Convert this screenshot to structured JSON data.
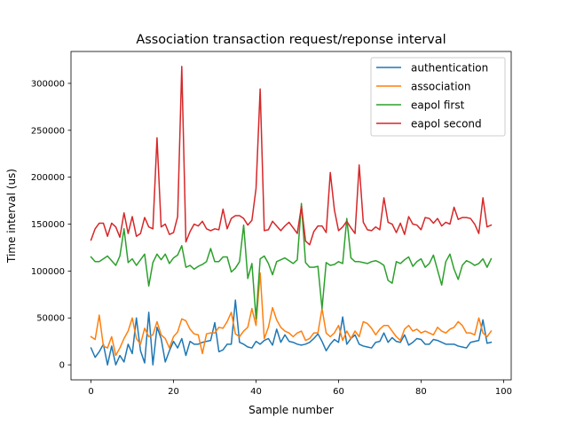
{
  "chart_data": {
    "type": "line",
    "title": "Association transaction request/reponse interval",
    "xlabel": "Sample number",
    "ylabel": "Time interval (us)",
    "xlim": [
      -4.85,
      101.85
    ],
    "ylim": [
      -16000,
      334000
    ],
    "xticks": [
      0,
      20,
      40,
      60,
      80,
      100
    ],
    "xtick_labels": [
      "0",
      "20",
      "40",
      "60",
      "80",
      "100"
    ],
    "yticks": [
      0,
      50000,
      100000,
      150000,
      200000,
      250000,
      300000
    ],
    "ytick_labels": [
      "0",
      "50000",
      "100000",
      "150000",
      "200000",
      "250000",
      "300000"
    ],
    "grid": false,
    "legend_position": "top-right",
    "x": [
      0,
      1,
      2,
      3,
      4,
      5,
      6,
      7,
      8,
      9,
      10,
      11,
      12,
      13,
      14,
      15,
      16,
      17,
      18,
      19,
      20,
      21,
      22,
      23,
      24,
      25,
      26,
      27,
      28,
      29,
      30,
      31,
      32,
      33,
      34,
      35,
      36,
      37,
      38,
      39,
      40,
      41,
      42,
      43,
      44,
      45,
      46,
      47,
      48,
      49,
      50,
      51,
      52,
      53,
      54,
      55,
      56,
      57,
      58,
      59,
      60,
      61,
      62,
      63,
      64,
      65,
      66,
      67,
      68,
      69,
      70,
      71,
      72,
      73,
      74,
      75,
      76,
      77,
      78,
      79,
      80,
      81,
      82,
      83,
      84,
      85,
      86,
      87,
      88,
      89,
      90,
      91,
      92,
      93,
      94,
      95,
      96,
      97
    ],
    "series": [
      {
        "name": "authentication",
        "color": "#1f77b4",
        "values": [
          18000,
          8000,
          14000,
          22000,
          0,
          20000,
          0,
          10000,
          3000,
          22000,
          12000,
          50000,
          15000,
          2000,
          56000,
          0,
          40000,
          28000,
          3000,
          15000,
          25000,
          18000,
          28000,
          10000,
          25000,
          22000,
          22000,
          24000,
          25000,
          26000,
          45000,
          14000,
          16000,
          22000,
          22000,
          69000,
          24000,
          22000,
          19000,
          18000,
          25000,
          22000,
          26000,
          28000,
          21000,
          38000,
          24000,
          32000,
          25000,
          24000,
          22000,
          21000,
          22000,
          24000,
          28000,
          33000,
          25000,
          15000,
          22000,
          27000,
          24000,
          51000,
          22000,
          28000,
          32000,
          22000,
          20000,
          19000,
          18000,
          24000,
          25000,
          34000,
          24000,
          29000,
          25000,
          24000,
          32000,
          21000,
          24000,
          28000,
          27000,
          22000,
          22000,
          27000,
          26000,
          24000,
          22000,
          22000,
          22000,
          20000,
          19000,
          18000,
          24000,
          25000,
          26000,
          48000,
          23000,
          24000
        ]
      },
      {
        "name": "association",
        "color": "#ff7f0e",
        "values": [
          30000,
          27000,
          53000,
          20000,
          18000,
          30000,
          10000,
          18000,
          28000,
          36000,
          50000,
          28000,
          22000,
          39000,
          30000,
          32000,
          46000,
          32000,
          28000,
          18000,
          30000,
          35000,
          49000,
          47000,
          38000,
          33000,
          32000,
          12000,
          33000,
          34000,
          34000,
          40000,
          39000,
          46000,
          56000,
          33000,
          30000,
          36000,
          40000,
          60000,
          42000,
          98000,
          28000,
          40000,
          61000,
          48000,
          40000,
          36000,
          34000,
          30000,
          34000,
          36000,
          26000,
          28000,
          34000,
          34000,
          60000,
          34000,
          30000,
          34000,
          42000,
          26000,
          36000,
          28000,
          36000,
          30000,
          46000,
          44000,
          39000,
          32000,
          38000,
          42000,
          42000,
          36000,
          30000,
          26000,
          38000,
          42000,
          36000,
          38000,
          34000,
          36000,
          34000,
          32000,
          40000,
          36000,
          34000,
          38000,
          40000,
          46000,
          42000,
          34000,
          34000,
          32000,
          50000,
          34000,
          30000,
          36000
        ]
      },
      {
        "name": "eapol first",
        "color": "#2ca02c",
        "values": [
          115000,
          110000,
          110000,
          113000,
          116000,
          111000,
          106000,
          116000,
          145000,
          109000,
          113000,
          106000,
          112000,
          118000,
          84000,
          109000,
          118000,
          112000,
          118000,
          108000,
          114000,
          117000,
          127000,
          104000,
          106000,
          102000,
          105000,
          107000,
          110000,
          124000,
          110000,
          110000,
          115000,
          115000,
          99000,
          103000,
          110000,
          149000,
          92000,
          108000,
          49000,
          113000,
          116000,
          108000,
          96000,
          110000,
          112000,
          114000,
          111000,
          108000,
          112000,
          172000,
          109000,
          104000,
          104000,
          105000,
          60000,
          109000,
          106000,
          107000,
          110000,
          108000,
          156000,
          114000,
          110000,
          110000,
          109000,
          108000,
          110000,
          111000,
          109000,
          106000,
          90000,
          87000,
          110000,
          108000,
          112000,
          115000,
          105000,
          110000,
          113000,
          104000,
          108000,
          117000,
          101000,
          85000,
          110000,
          118000,
          102000,
          91000,
          106000,
          111000,
          109000,
          106000,
          108000,
          113000,
          104000,
          113000
        ]
      },
      {
        "name": "eapol second",
        "color": "#d62728",
        "values": [
          133000,
          145000,
          151000,
          151000,
          137000,
          151000,
          147000,
          136000,
          162000,
          140000,
          158000,
          137000,
          140000,
          157000,
          147000,
          145000,
          242000,
          147000,
          150000,
          139000,
          141000,
          158000,
          318000,
          131000,
          142000,
          150000,
          148000,
          153000,
          145000,
          143000,
          145000,
          144000,
          166000,
          145000,
          156000,
          159000,
          159000,
          156000,
          149000,
          154000,
          188000,
          294000,
          143000,
          144000,
          153000,
          148000,
          143000,
          148000,
          152000,
          146000,
          140000,
          169000,
          132000,
          128000,
          142000,
          148000,
          148000,
          141000,
          205000,
          165000,
          143000,
          147000,
          153000,
          146000,
          140000,
          213000,
          152000,
          144000,
          143000,
          147000,
          144000,
          178000,
          152000,
          150000,
          141000,
          151000,
          139000,
          158000,
          150000,
          149000,
          144000,
          157000,
          156000,
          151000,
          156000,
          148000,
          152000,
          150000,
          168000,
          155000,
          157000,
          157000,
          156000,
          150000,
          140000,
          178000,
          147000,
          149000
        ]
      }
    ]
  }
}
